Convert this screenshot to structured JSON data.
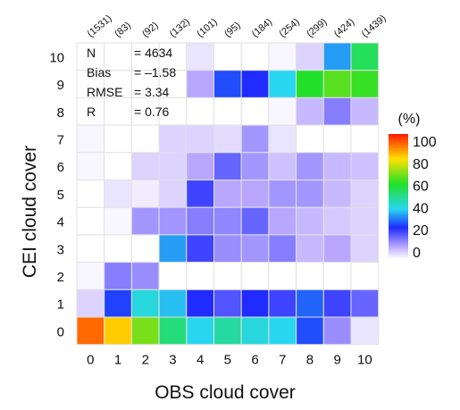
{
  "chart_data": {
    "type": "heatmap",
    "xlabel": "OBS cloud cover",
    "ylabel": "CEI cloud cover",
    "x_categories": [
      "0",
      "1",
      "2",
      "3",
      "4",
      "5",
      "6",
      "7",
      "8",
      "9",
      "10"
    ],
    "y_categories": [
      "0",
      "1",
      "2",
      "3",
      "4",
      "5",
      "6",
      "7",
      "8",
      "9",
      "10"
    ],
    "column_counts": [
      "(1531)",
      "(83)",
      "(92)",
      "(132)",
      "(101)",
      "(95)",
      "(184)",
      "(254)",
      "(299)",
      "(424)",
      "(1439)"
    ],
    "values_by_row": [
      {
        "y": "10",
        "values": [
          0,
          0,
          0,
          0,
          3,
          0,
          0,
          1,
          5,
          35,
          55
        ]
      },
      {
        "y": "9",
        "values": [
          0,
          0,
          0,
          0,
          10,
          28,
          25,
          40,
          60,
          65,
          62
        ]
      },
      {
        "y": "8",
        "values": [
          0,
          0,
          0,
          0,
          0,
          0,
          0,
          1,
          8,
          15,
          8
        ]
      },
      {
        "y": "7",
        "values": [
          1,
          0,
          0,
          5,
          5,
          4,
          12,
          3,
          0,
          0,
          0
        ]
      },
      {
        "y": "6",
        "values": [
          1,
          0,
          5,
          5,
          10,
          18,
          12,
          7,
          12,
          8,
          7
        ]
      },
      {
        "y": "5",
        "values": [
          0,
          3,
          2,
          5,
          22,
          10,
          10,
          12,
          12,
          8,
          5
        ]
      },
      {
        "y": "4",
        "values": [
          0,
          1,
          12,
          12,
          15,
          14,
          18,
          10,
          8,
          6,
          5
        ]
      },
      {
        "y": "3",
        "values": [
          0,
          0,
          0,
          35,
          22,
          13,
          12,
          15,
          8,
          10,
          5
        ]
      },
      {
        "y": "2",
        "values": [
          1,
          15,
          13,
          0,
          0,
          0,
          0,
          0,
          0,
          0,
          0
        ]
      },
      {
        "y": "1",
        "values": [
          5,
          27,
          42,
          38,
          25,
          20,
          25,
          22,
          30,
          22,
          18
        ]
      },
      {
        "y": "0",
        "values": [
          92,
          82,
          68,
          52,
          40,
          48,
          42,
          40,
          28,
          13,
          3
        ]
      }
    ],
    "annotations": [
      {
        "label": "N",
        "value": "= 4634"
      },
      {
        "label": "Bias",
        "value": "= –1.58"
      },
      {
        "label": "RMSE",
        "value": "= 3.34"
      },
      {
        "label": "R",
        "value": "= 0.76"
      }
    ],
    "colorbar": {
      "title": "(%)",
      "ticks": [
        "100",
        "80",
        "60",
        "40",
        "20",
        "0"
      ],
      "range": [
        0,
        100
      ]
    },
    "grid": true
  }
}
